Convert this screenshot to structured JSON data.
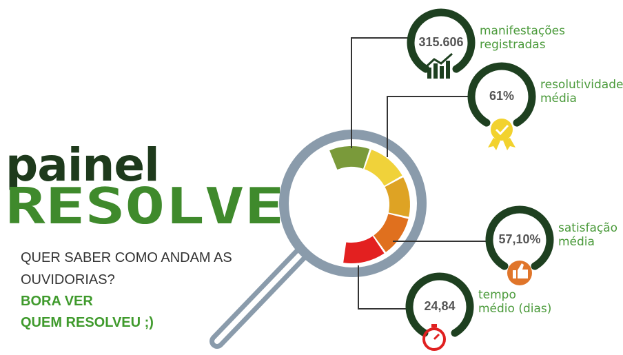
{
  "title": {
    "line1": "painel",
    "line2": "RESOLVEU?"
  },
  "intro": {
    "lines": [
      "QUER SABER COMO ANDAM AS",
      "OUVIDORIAS?"
    ],
    "highlight": [
      "BORA VER",
      "QUEM RESOLVEU ;)"
    ]
  },
  "metrics": [
    {
      "value": "315.606",
      "caption": [
        "manifestações",
        "registradas"
      ]
    },
    {
      "value": "61%",
      "caption": [
        "resolutividade",
        "média"
      ]
    },
    {
      "value": "57,10%",
      "caption": [
        "satisfação",
        "média"
      ]
    },
    {
      "value": "24,84",
      "caption": [
        "tempo",
        "médio (dias)"
      ]
    }
  ]
}
